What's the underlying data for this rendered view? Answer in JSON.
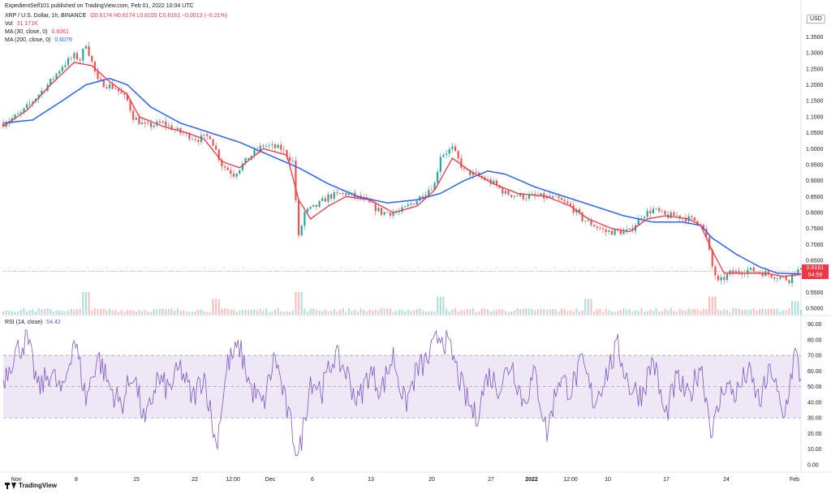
{
  "header": {
    "published": "ExpedientSelf101 published on TradingView.com, Feb 01, 2022 10:04 UTC",
    "symbol": "XRP / U.S. Dollar, 1h, BINANCE",
    "ohlc": "O0.6174 H0.6174 L0.6155 C0.6161 −0.0013 (−0.21%)",
    "vol_label": "Vol",
    "vol_value": "31.171K",
    "ma30_label": "MA (30, close, 0)",
    "ma30_value": "0.6061",
    "ma200_label": "MA (200, close, 0)",
    "ma200_value": "0.6079",
    "rsi_label": "RSI (14, close)",
    "rsi_value": "54.42"
  },
  "currency": "USD",
  "current_price": "0.6161",
  "countdown": "54:59",
  "brand": "TradingView",
  "colors": {
    "up": "#26a69a",
    "down": "#ef5350",
    "ma30": "#f23645",
    "ma200": "#2962ff",
    "rsi": "#7e57c2",
    "rsi_band": "#ede7f6"
  },
  "chart_data": [
    {
      "type": "candlestick",
      "title": "XRP / U.S. Dollar, 1h, BINANCE",
      "x_ticks": [
        "Nov",
        "8",
        "15",
        "22",
        "12:00",
        "Dec",
        "6",
        "13",
        "20",
        "27",
        "2022",
        "12:00",
        "10",
        "17",
        "24",
        "Feb"
      ],
      "y_ticks": [
        "1.4000",
        "1.3500",
        "1.3000",
        "1.2500",
        "1.2000",
        "1.1500",
        "1.1000",
        "1.0500",
        "1.0000",
        "0.9500",
        "0.9000",
        "0.8500",
        "0.8000",
        "0.7500",
        "0.7000",
        "0.6500",
        "0.6000",
        "0.5500",
        "0.5000"
      ],
      "ylim": [
        0.48,
        1.43
      ],
      "price_path": [
        [
          0,
          1.08
        ],
        [
          3,
          1.11
        ],
        [
          6,
          1.17
        ],
        [
          8,
          1.21
        ],
        [
          10,
          1.26
        ],
        [
          12,
          1.29
        ],
        [
          13,
          1.28
        ],
        [
          14,
          1.33
        ],
        [
          16,
          1.21
        ],
        [
          19,
          1.19
        ],
        [
          21,
          1.15
        ],
        [
          22,
          1.1
        ],
        [
          24,
          1.07
        ],
        [
          27,
          1.08
        ],
        [
          30,
          1.05
        ],
        [
          33,
          1.03
        ],
        [
          35,
          1.04
        ],
        [
          37,
          0.95
        ],
        [
          39,
          0.92
        ],
        [
          42,
          0.98
        ],
        [
          44,
          1.01
        ],
        [
          47,
          1.0
        ],
        [
          49,
          0.96
        ],
        [
          50,
          0.72
        ],
        [
          51,
          0.8
        ],
        [
          53,
          0.82
        ],
        [
          55,
          0.85
        ],
        [
          58,
          0.86
        ],
        [
          61,
          0.84
        ],
        [
          64,
          0.8
        ],
        [
          67,
          0.8
        ],
        [
          70,
          0.84
        ],
        [
          73,
          0.89
        ],
        [
          74,
          0.98
        ],
        [
          76,
          1.0
        ],
        [
          78,
          0.93
        ],
        [
          81,
          0.91
        ],
        [
          83,
          0.89
        ],
        [
          85,
          0.86
        ],
        [
          88,
          0.85
        ],
        [
          91,
          0.85
        ],
        [
          94,
          0.84
        ],
        [
          96,
          0.82
        ],
        [
          98,
          0.78
        ],
        [
          100,
          0.76
        ],
        [
          102,
          0.74
        ],
        [
          104,
          0.74
        ],
        [
          106,
          0.74
        ],
        [
          108,
          0.79
        ],
        [
          110,
          0.81
        ],
        [
          112,
          0.79
        ],
        [
          114,
          0.79
        ],
        [
          116,
          0.78
        ],
        [
          118,
          0.77
        ],
        [
          119,
          0.72
        ],
        [
          120,
          0.63
        ],
        [
          121,
          0.58
        ],
        [
          123,
          0.61
        ],
        [
          126,
          0.62
        ],
        [
          129,
          0.61
        ],
        [
          131,
          0.6
        ],
        [
          133,
          0.59
        ],
        [
          134,
          0.62
        ],
        [
          135,
          0.616
        ]
      ],
      "ma30_path": [
        [
          0,
          1.07
        ],
        [
          4,
          1.12
        ],
        [
          8,
          1.2
        ],
        [
          12,
          1.27
        ],
        [
          15,
          1.26
        ],
        [
          18,
          1.21
        ],
        [
          21,
          1.17
        ],
        [
          23,
          1.1
        ],
        [
          27,
          1.07
        ],
        [
          31,
          1.05
        ],
        [
          34,
          1.03
        ],
        [
          37,
          0.96
        ],
        [
          40,
          0.94
        ],
        [
          44,
          1.0
        ],
        [
          48,
          0.98
        ],
        [
          50,
          0.84
        ],
        [
          52,
          0.78
        ],
        [
          55,
          0.82
        ],
        [
          58,
          0.85
        ],
        [
          62,
          0.84
        ],
        [
          66,
          0.8
        ],
        [
          70,
          0.82
        ],
        [
          73,
          0.87
        ],
        [
          76,
          0.97
        ],
        [
          79,
          0.93
        ],
        [
          83,
          0.89
        ],
        [
          87,
          0.86
        ],
        [
          92,
          0.85
        ],
        [
          96,
          0.82
        ],
        [
          99,
          0.78
        ],
        [
          103,
          0.75
        ],
        [
          106,
          0.74
        ],
        [
          109,
          0.78
        ],
        [
          112,
          0.79
        ],
        [
          116,
          0.78
        ],
        [
          118,
          0.76
        ],
        [
          120,
          0.68
        ],
        [
          122,
          0.61
        ],
        [
          125,
          0.61
        ],
        [
          129,
          0.61
        ],
        [
          132,
          0.6
        ],
        [
          135,
          0.606
        ]
      ],
      "ma200_path": [
        [
          0,
          1.08
        ],
        [
          5,
          1.09
        ],
        [
          10,
          1.15
        ],
        [
          14,
          1.2
        ],
        [
          18,
          1.22
        ],
        [
          21,
          1.2
        ],
        [
          25,
          1.13
        ],
        [
          30,
          1.08
        ],
        [
          35,
          1.05
        ],
        [
          40,
          1.02
        ],
        [
          45,
          0.98
        ],
        [
          50,
          0.94
        ],
        [
          55,
          0.89
        ],
        [
          60,
          0.85
        ],
        [
          65,
          0.83
        ],
        [
          70,
          0.84
        ],
        [
          74,
          0.86
        ],
        [
          78,
          0.9
        ],
        [
          82,
          0.93
        ],
        [
          85,
          0.92
        ],
        [
          90,
          0.88
        ],
        [
          95,
          0.85
        ],
        [
          100,
          0.82
        ],
        [
          105,
          0.79
        ],
        [
          110,
          0.77
        ],
        [
          115,
          0.77
        ],
        [
          118,
          0.76
        ],
        [
          120,
          0.72
        ],
        [
          124,
          0.67
        ],
        [
          128,
          0.63
        ],
        [
          131,
          0.61
        ],
        [
          135,
          0.608
        ]
      ],
      "volume_spikes": [
        [
          14,
          1.0
        ],
        [
          36,
          0.7
        ],
        [
          50,
          1.0
        ],
        [
          74,
          0.8
        ],
        [
          99,
          0.7
        ],
        [
          120,
          0.8
        ],
        [
          134,
          0.6
        ]
      ]
    },
    {
      "type": "line",
      "title": "RSI (14, close)",
      "y_ticks": [
        "90.00",
        "80.00",
        "70.00",
        "60.00",
        "50.00",
        "40.00",
        "30.00",
        "20.00",
        "10.00",
        "0.00"
      ],
      "ylim": [
        0,
        95
      ],
      "band": [
        30,
        70
      ],
      "rsi_path": [
        [
          0,
          55
        ],
        [
          2,
          72
        ],
        [
          4,
          80
        ],
        [
          6,
          48
        ],
        [
          8,
          60
        ],
        [
          10,
          45
        ],
        [
          12,
          82
        ],
        [
          14,
          42
        ],
        [
          16,
          70
        ],
        [
          18,
          50
        ],
        [
          20,
          38
        ],
        [
          22,
          60
        ],
        [
          24,
          25
        ],
        [
          26,
          55
        ],
        [
          28,
          48
        ],
        [
          30,
          62
        ],
        [
          32,
          42
        ],
        [
          34,
          58
        ],
        [
          36,
          12
        ],
        [
          38,
          65
        ],
        [
          40,
          75
        ],
        [
          42,
          48
        ],
        [
          44,
          38
        ],
        [
          46,
          70
        ],
        [
          48,
          35
        ],
        [
          50,
          5
        ],
        [
          52,
          55
        ],
        [
          54,
          48
        ],
        [
          56,
          70
        ],
        [
          58,
          60
        ],
        [
          60,
          40
        ],
        [
          62,
          60
        ],
        [
          64,
          48
        ],
        [
          66,
          70
        ],
        [
          68,
          38
        ],
        [
          70,
          60
        ],
        [
          72,
          68
        ],
        [
          74,
          85
        ],
        [
          76,
          70
        ],
        [
          78,
          45
        ],
        [
          80,
          30
        ],
        [
          82,
          58
        ],
        [
          84,
          50
        ],
        [
          86,
          66
        ],
        [
          88,
          40
        ],
        [
          90,
          58
        ],
        [
          92,
          20
        ],
        [
          94,
          56
        ],
        [
          96,
          48
        ],
        [
          98,
          65
        ],
        [
          100,
          40
        ],
        [
          102,
          58
        ],
        [
          104,
          75
        ],
        [
          106,
          50
        ],
        [
          108,
          45
        ],
        [
          110,
          68
        ],
        [
          112,
          30
        ],
        [
          114,
          55
        ],
        [
          116,
          42
        ],
        [
          118,
          65
        ],
        [
          120,
          20
        ],
        [
          122,
          52
        ],
        [
          124,
          45
        ],
        [
          126,
          60
        ],
        [
          128,
          40
        ],
        [
          130,
          62
        ],
        [
          132,
          28
        ],
        [
          134,
          72
        ],
        [
          135,
          54
        ]
      ]
    }
  ]
}
